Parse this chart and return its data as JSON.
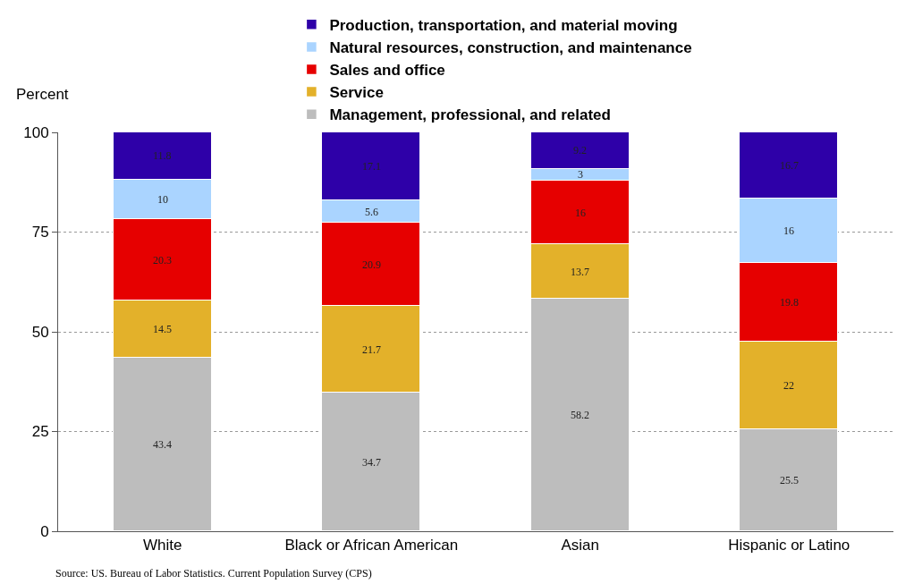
{
  "chart_data": {
    "type": "bar",
    "stacked": true,
    "ylabel": "Percent",
    "categories": [
      "White",
      "Black or African American",
      "Asian",
      "Hispanic or Latino"
    ],
    "series": [
      {
        "name": "Management, professional, and related",
        "color": "#bdbdbd",
        "values": [
          43.4,
          34.7,
          58.2,
          25.5
        ]
      },
      {
        "name": "Service",
        "color": "#e3b12a",
        "values": [
          14.5,
          21.7,
          13.7,
          22
        ]
      },
      {
        "name": "Sales and office",
        "color": "#e60000",
        "values": [
          20.3,
          20.9,
          16,
          19.8
        ]
      },
      {
        "name": "Natural resources, construction, and maintenance",
        "color": "#aad4ff",
        "values": [
          10,
          5.6,
          3,
          16
        ]
      },
      {
        "name": "Production, transportation, and material moving",
        "color": "#2e00a8",
        "values": [
          11.8,
          17.1,
          9.2,
          16.7
        ]
      }
    ],
    "ylim": [
      0,
      100
    ],
    "yticks": [
      0,
      25,
      50,
      75,
      100
    ],
    "grid": "y",
    "legend": "top",
    "data_labels": true,
    "annotations": [
      "Source: US. Bureau of Labor Statistics. Current Population Survey (CPS)"
    ]
  }
}
